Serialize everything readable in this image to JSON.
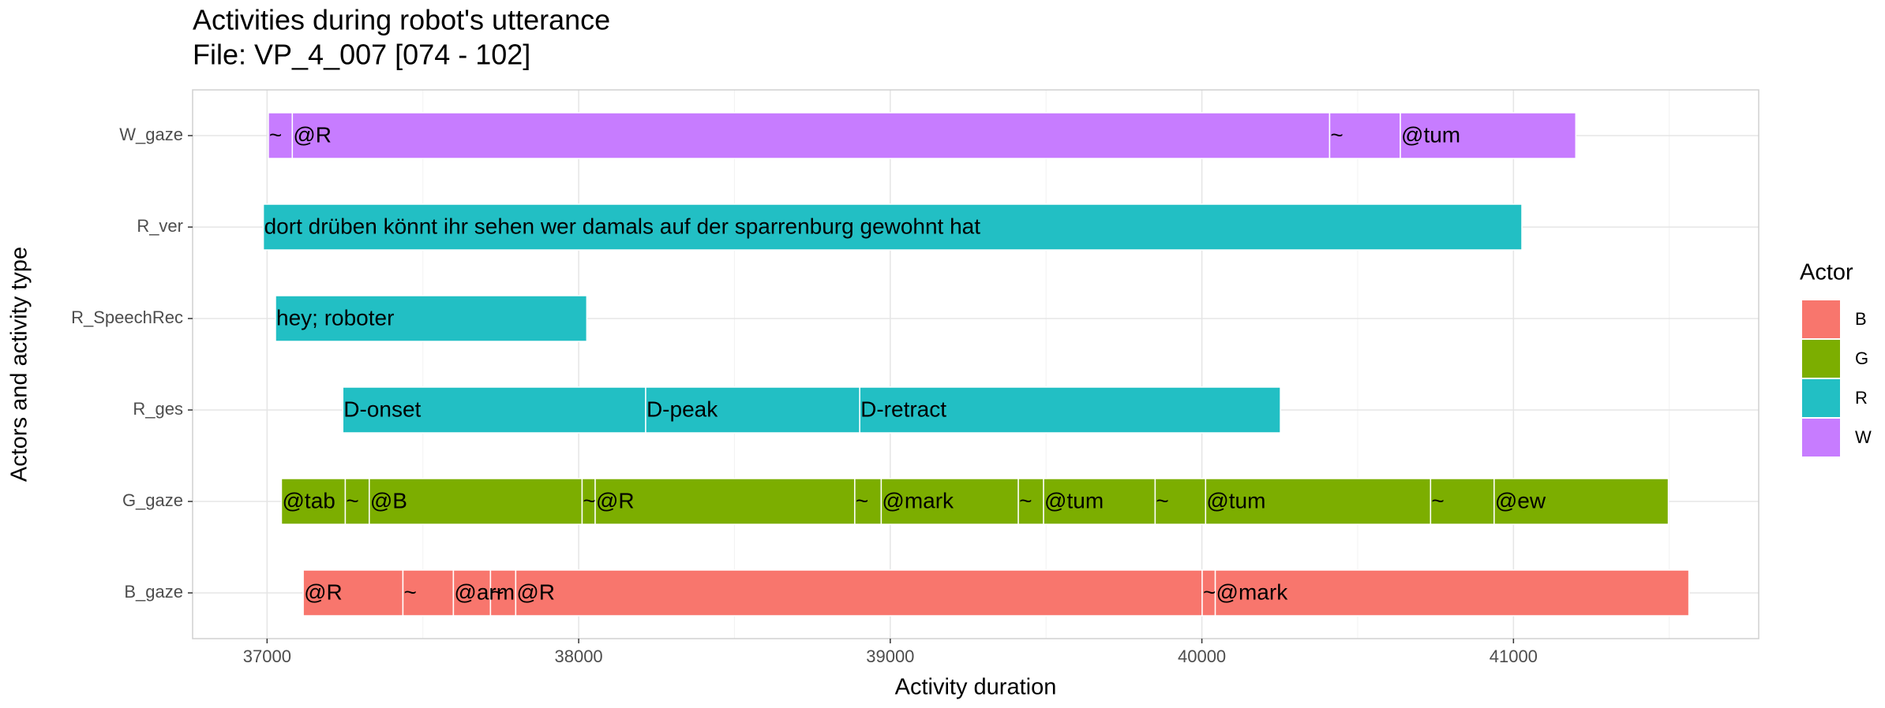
{
  "chart_data": {
    "type": "timeline",
    "title": "Activities during robot's utterance",
    "subtitle": "File: VP_4_007 [074 - 102]",
    "x_label": "Activity duration",
    "y_label": "Actors and activity type",
    "xlim": [
      36761,
      41787
    ],
    "xticks": [
      37000,
      38000,
      39000,
      40000,
      41000
    ],
    "xminor": [
      37500,
      38500,
      39500,
      40500,
      41500
    ],
    "grid": true,
    "legend": {
      "title": "Actor",
      "position": "right",
      "items": [
        {
          "name": "B",
          "color": "#F8766D"
        },
        {
          "name": "G",
          "color": "#7CAE00"
        },
        {
          "name": "R",
          "color": "#22BFC4"
        },
        {
          "name": "W",
          "color": "#C77CFF"
        }
      ]
    },
    "rows": [
      {
        "name": "W_gaze",
        "actor": "W",
        "segments": [
          {
            "start": 37004,
            "end": 37081,
            "label": "~"
          },
          {
            "start": 37081,
            "end": 40410,
            "label": "@R"
          },
          {
            "start": 40410,
            "end": 40637,
            "label": "~"
          },
          {
            "start": 40637,
            "end": 41200,
            "label": "@tum"
          }
        ]
      },
      {
        "name": "R_ver",
        "actor": "R",
        "segments": [
          {
            "start": 36988,
            "end": 41027,
            "label": "dort drüben könnt ihr sehen wer damals auf der sparrenburg gewohnt hat"
          }
        ]
      },
      {
        "name": "R_SpeechRec",
        "actor": "R",
        "segments": [
          {
            "start": 37027,
            "end": 38026,
            "label": "hey; roboter"
          }
        ]
      },
      {
        "name": "R_ges",
        "actor": "R",
        "segments": [
          {
            "start": 37243,
            "end": 38215,
            "label": "D-onset"
          },
          {
            "start": 38215,
            "end": 38902,
            "label": "D-peak"
          },
          {
            "start": 38902,
            "end": 40252,
            "label": "D-retract"
          }
        ]
      },
      {
        "name": "G_gaze",
        "actor": "G",
        "segments": [
          {
            "start": 37046,
            "end": 37251,
            "label": "@tab"
          },
          {
            "start": 37251,
            "end": 37328,
            "label": "~"
          },
          {
            "start": 37328,
            "end": 38011,
            "label": "@B"
          },
          {
            "start": 38011,
            "end": 38053,
            "label": "~"
          },
          {
            "start": 38053,
            "end": 38886,
            "label": "@R"
          },
          {
            "start": 38886,
            "end": 38971,
            "label": "~"
          },
          {
            "start": 38971,
            "end": 39411,
            "label": "@mark"
          },
          {
            "start": 39411,
            "end": 39492,
            "label": "~"
          },
          {
            "start": 39492,
            "end": 39850,
            "label": "@tum"
          },
          {
            "start": 39850,
            "end": 40012,
            "label": "~"
          },
          {
            "start": 40012,
            "end": 40734,
            "label": "@tum"
          },
          {
            "start": 40734,
            "end": 40938,
            "label": "~"
          },
          {
            "start": 40938,
            "end": 41497,
            "label": "@ew"
          }
        ]
      },
      {
        "name": "B_gaze",
        "actor": "B",
        "segments": [
          {
            "start": 37116,
            "end": 37436,
            "label": "@R"
          },
          {
            "start": 37436,
            "end": 37598,
            "label": "~"
          },
          {
            "start": 37598,
            "end": 37717,
            "label": "@arm"
          },
          {
            "start": 37717,
            "end": 37798,
            "label": "~"
          },
          {
            "start": 37798,
            "end": 40001,
            "label": "@R"
          },
          {
            "start": 40001,
            "end": 40043,
            "label": "~"
          },
          {
            "start": 40043,
            "end": 41563,
            "label": "@mark"
          }
        ]
      }
    ]
  }
}
